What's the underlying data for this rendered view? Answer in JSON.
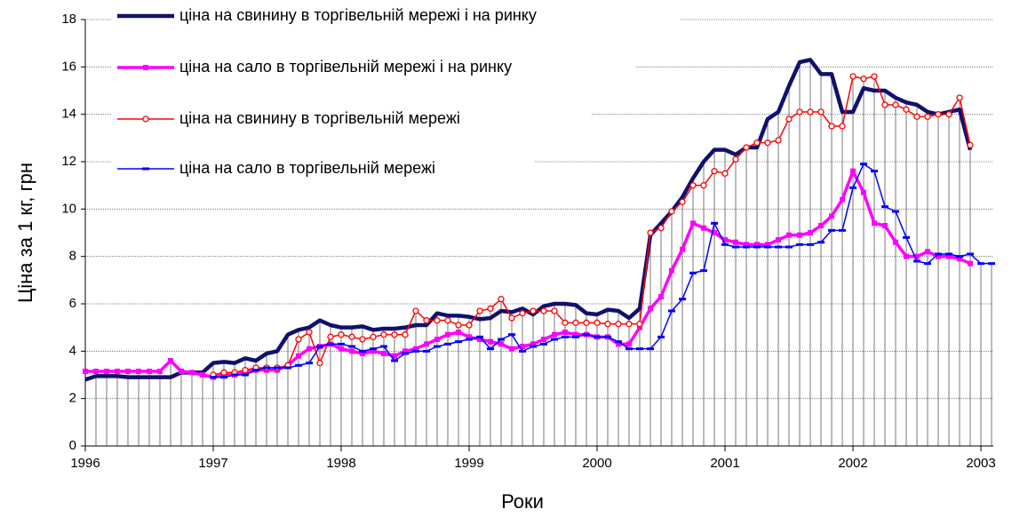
{
  "chart_data": {
    "type": "line",
    "x_label": "Роки",
    "y_label": "Ціна за 1 кг, грн",
    "categories": [
      "1996",
      null,
      null,
      null,
      null,
      null,
      null,
      null,
      null,
      null,
      null,
      null,
      "1997",
      null,
      null,
      null,
      null,
      null,
      null,
      null,
      null,
      null,
      null,
      null,
      "1998",
      null,
      null,
      null,
      null,
      null,
      null,
      null,
      null,
      null,
      null,
      null,
      "1999",
      null,
      null,
      null,
      null,
      null,
      null,
      null,
      null,
      null,
      null,
      null,
      "2000",
      null,
      null,
      null,
      null,
      null,
      null,
      null,
      null,
      null,
      null,
      null,
      "2001",
      null,
      null,
      null,
      null,
      null,
      null,
      null,
      null,
      null,
      null,
      null,
      "2002",
      null,
      null,
      null,
      null,
      null,
      null,
      null,
      null,
      null,
      null,
      null,
      "2003",
      null
    ],
    "ylim": [
      0,
      18
    ],
    "yticks": [
      0,
      2,
      4,
      6,
      8,
      10,
      12,
      14,
      16,
      18
    ],
    "grid": true,
    "series": [
      {
        "name": "ціна на свинину в торгівельній мережі і на ринку",
        "color": "#10106e",
        "marker": "none",
        "values": [
          2.8,
          2.95,
          2.95,
          2.95,
          2.9,
          2.9,
          2.9,
          2.9,
          2.9,
          3.1,
          3.1,
          3.1,
          3.5,
          3.55,
          3.5,
          3.7,
          3.6,
          3.9,
          4.0,
          4.7,
          4.9,
          5.0,
          5.3,
          5.1,
          5.0,
          5.0,
          5.05,
          4.9,
          4.95,
          4.95,
          5.0,
          5.1,
          5.1,
          5.6,
          5.5,
          5.5,
          5.45,
          5.35,
          5.4,
          5.7,
          5.65,
          5.8,
          5.55,
          5.9,
          6.0,
          6.0,
          5.95,
          5.6,
          5.55,
          5.75,
          5.7,
          5.4,
          5.8,
          8.9,
          9.4,
          9.9,
          10.5,
          11.3,
          12.0,
          12.5,
          12.5,
          12.3,
          12.6,
          12.6,
          13.8,
          14.1,
          15.2,
          16.2,
          16.3,
          15.7,
          15.7,
          14.1,
          14.1,
          15.1,
          15.0,
          15.0,
          14.7,
          14.5,
          14.4,
          14.1,
          14.0,
          14.1,
          14.2,
          12.5,
          null,
          null
        ]
      },
      {
        "name": "ціна на сало в торгівельній мережі і на ринку",
        "color": "#ff00ff",
        "marker": "square",
        "values": [
          3.15,
          3.15,
          3.15,
          3.15,
          3.15,
          3.15,
          3.15,
          3.15,
          3.6,
          3.15,
          3.1,
          3.0,
          2.9,
          3.0,
          3.0,
          3.1,
          3.2,
          3.2,
          3.2,
          3.4,
          3.8,
          4.1,
          4.2,
          4.3,
          4.1,
          4.0,
          3.9,
          4.0,
          3.9,
          3.8,
          4.0,
          4.1,
          4.3,
          4.5,
          4.7,
          4.8,
          4.6,
          4.5,
          4.4,
          4.3,
          4.1,
          4.2,
          4.3,
          4.5,
          4.7,
          4.8,
          4.7,
          4.7,
          4.6,
          4.6,
          4.3,
          4.3,
          5.0,
          5.8,
          6.3,
          7.4,
          8.3,
          9.4,
          9.2,
          9.0,
          8.7,
          8.6,
          8.5,
          8.5,
          8.5,
          8.7,
          8.9,
          8.9,
          9.0,
          9.3,
          9.7,
          10.4,
          11.6,
          10.7,
          9.4,
          9.3,
          8.6,
          8.0,
          8.0,
          8.2,
          8.0,
          8.0,
          7.9,
          7.7,
          null,
          null
        ]
      },
      {
        "name": "ціна на свинину в торгівельній мережі",
        "color": "#ff0000",
        "marker": "circle",
        "values": [
          null,
          null,
          null,
          null,
          null,
          null,
          null,
          null,
          null,
          null,
          null,
          null,
          3.0,
          3.1,
          3.1,
          3.2,
          3.3,
          3.3,
          3.3,
          3.4,
          4.5,
          4.8,
          3.5,
          4.6,
          4.7,
          4.6,
          4.5,
          4.6,
          4.7,
          4.7,
          4.7,
          5.7,
          5.3,
          5.3,
          5.3,
          5.1,
          5.1,
          5.7,
          5.8,
          6.2,
          5.4,
          5.6,
          5.7,
          5.7,
          5.7,
          5.2,
          5.2,
          5.2,
          5.2,
          5.15,
          5.15,
          5.15,
          5.15,
          9.0,
          9.2,
          9.9,
          10.3,
          11.0,
          11.0,
          11.6,
          11.5,
          12.1,
          12.6,
          12.8,
          12.8,
          12.9,
          13.8,
          14.1,
          14.1,
          14.1,
          13.5,
          13.5,
          15.6,
          15.5,
          15.6,
          14.4,
          14.4,
          14.2,
          13.9,
          13.9,
          14.0,
          14.0,
          14.7,
          12.7,
          null,
          null
        ]
      },
      {
        "name": "ціна на сало в торгівельній мережі",
        "color": "#0000ff",
        "marker": "dash",
        "values": [
          null,
          null,
          null,
          null,
          null,
          null,
          null,
          null,
          null,
          null,
          null,
          null,
          2.9,
          2.9,
          3.0,
          3.0,
          3.2,
          3.3,
          3.3,
          3.3,
          3.4,
          3.5,
          4.2,
          4.3,
          4.3,
          4.2,
          4.0,
          4.1,
          4.2,
          3.6,
          3.9,
          4.0,
          4.0,
          4.2,
          4.3,
          4.4,
          4.5,
          4.6,
          4.1,
          4.5,
          4.7,
          4.0,
          4.2,
          4.3,
          4.5,
          4.6,
          4.6,
          4.7,
          4.6,
          4.6,
          4.4,
          4.1,
          4.1,
          4.1,
          4.6,
          5.7,
          6.2,
          7.3,
          7.4,
          9.4,
          8.5,
          8.4,
          8.4,
          8.4,
          8.4,
          8.4,
          8.4,
          8.5,
          8.5,
          8.6,
          9.1,
          9.1,
          10.9,
          11.9,
          11.6,
          10.1,
          9.9,
          8.8,
          7.8,
          7.7,
          8.1,
          8.1,
          8.0,
          8.1,
          7.7,
          7.7
        ]
      }
    ]
  }
}
